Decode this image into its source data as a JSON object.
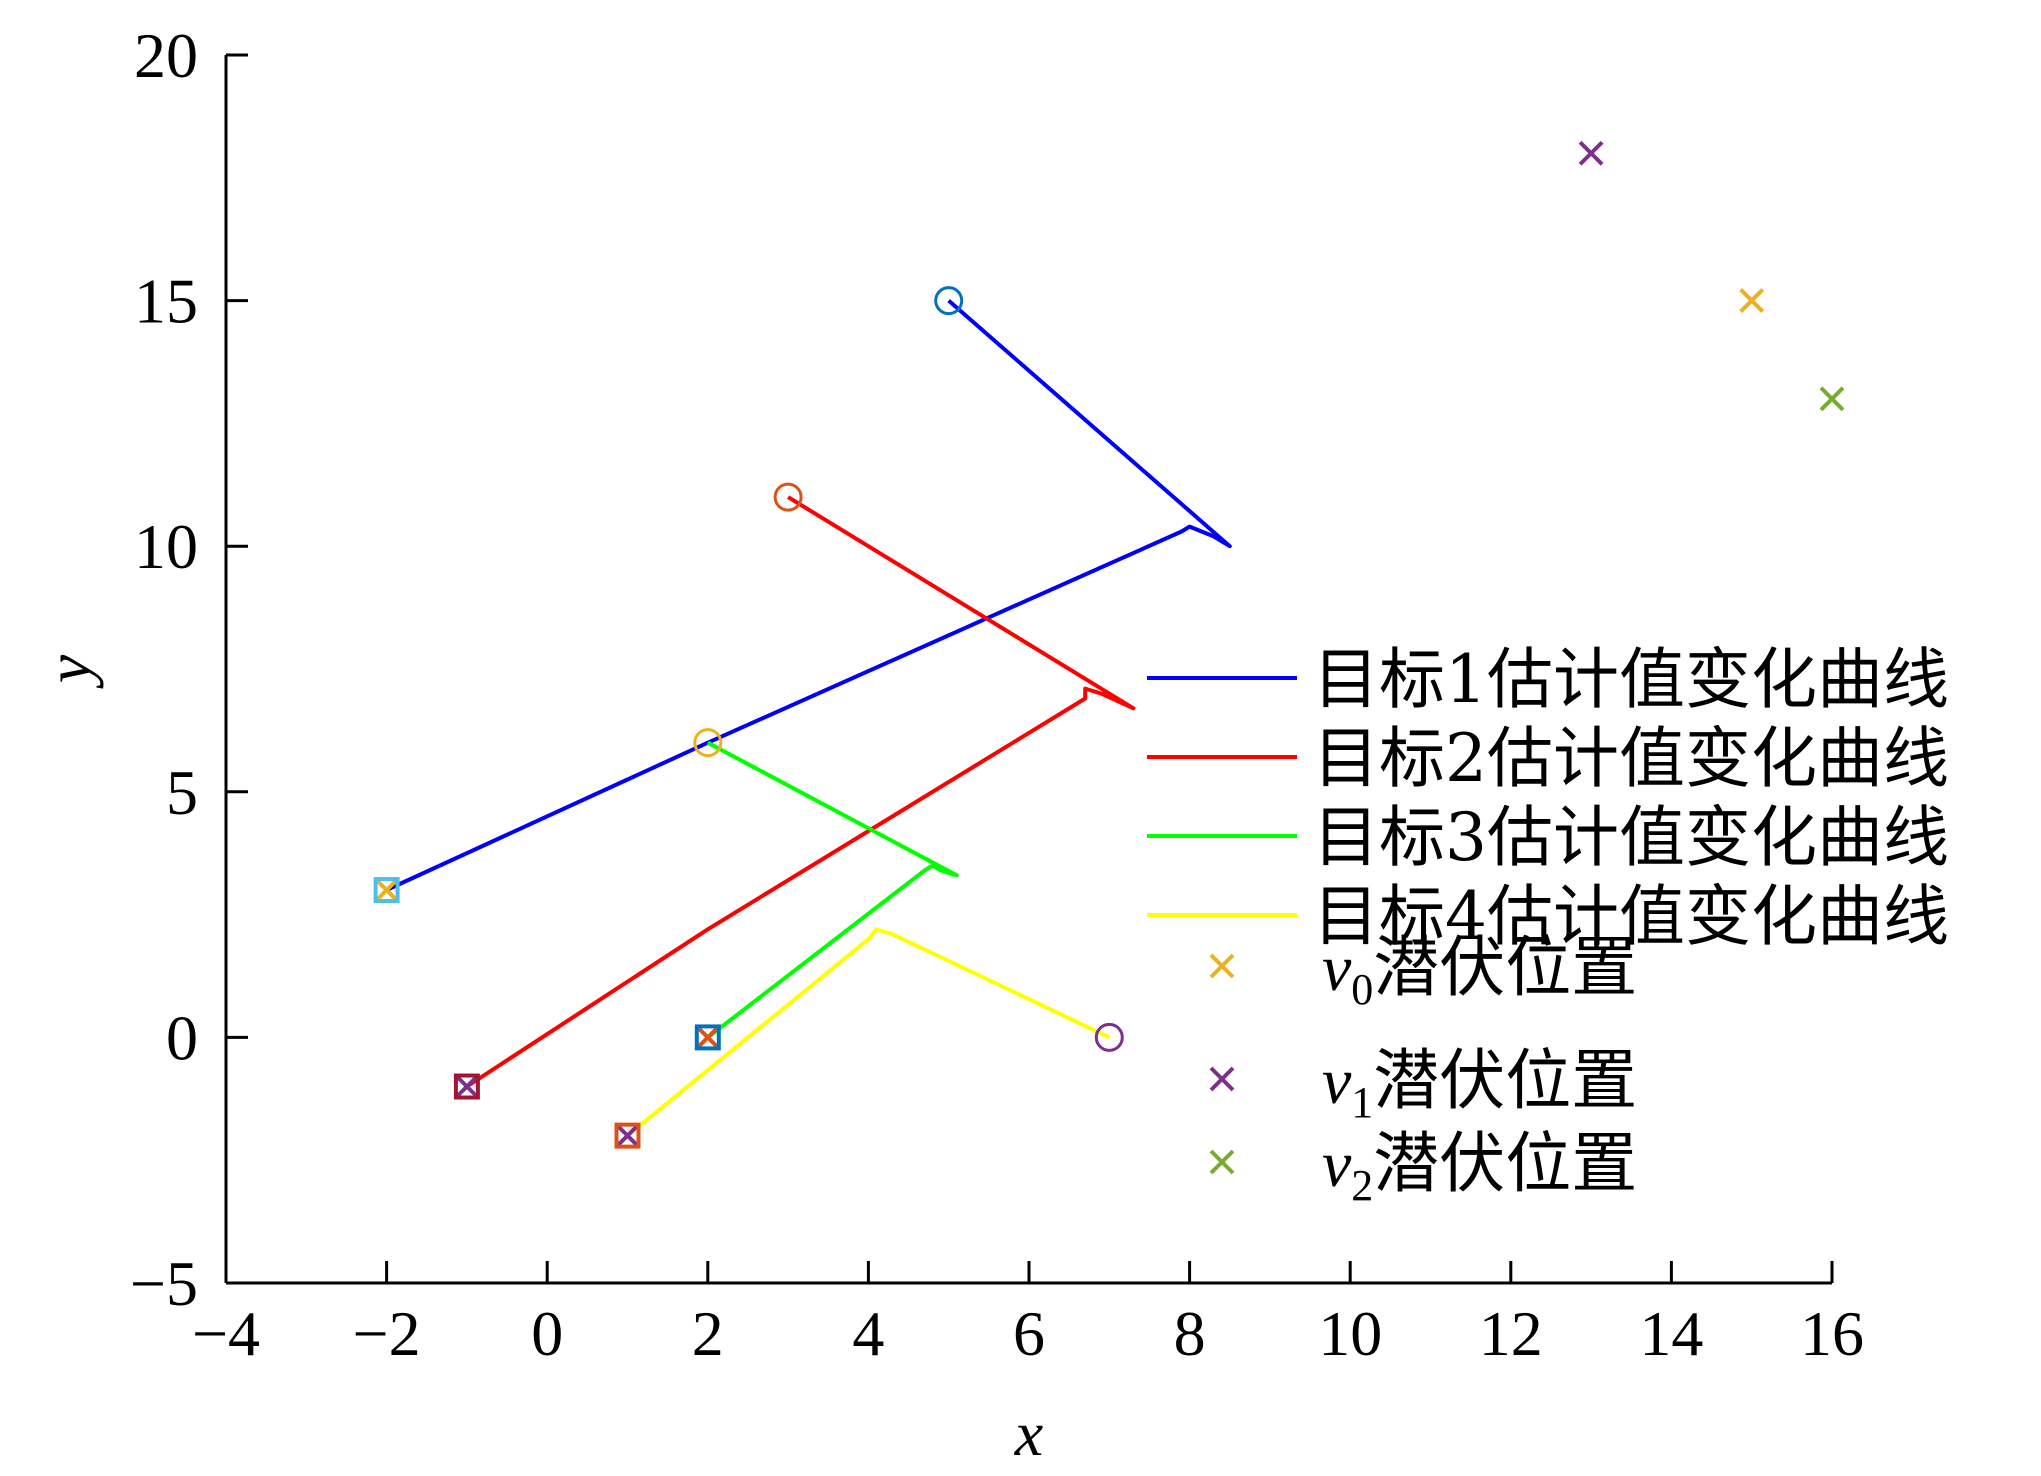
{
  "chart_data": {
    "type": "line",
    "xlabel": "x",
    "ylabel": "y",
    "xlim": [
      -4,
      16
    ],
    "ylim": [
      -5,
      20
    ],
    "xticks": [
      -4,
      -2,
      0,
      2,
      4,
      6,
      8,
      10,
      12,
      14,
      16
    ],
    "yticks": [
      -5,
      0,
      5,
      10,
      15,
      20
    ],
    "grid": false,
    "legend_position": "right",
    "series": [
      {
        "name": "目标1估计值变化曲线",
        "color": "#0000ff",
        "points": [
          [
            5,
            15
          ],
          [
            8.5,
            10
          ],
          [
            8.3,
            10.2
          ],
          [
            8,
            10.4
          ],
          [
            7.9,
            10.3
          ],
          [
            2,
            6
          ],
          [
            -2,
            3
          ]
        ],
        "start_marker": {
          "x": 5,
          "y": 15,
          "color": "#0072bd"
        },
        "end_marker": {
          "x": -2,
          "y": 3,
          "color": "#4dbeee"
        }
      },
      {
        "name": "目标2估计值变化曲线",
        "color": "#ff0000",
        "points": [
          [
            3,
            11
          ],
          [
            7.3,
            6.7
          ],
          [
            6.9,
            7
          ],
          [
            6.7,
            7.1
          ],
          [
            6.7,
            6.9
          ],
          [
            2,
            2.2
          ],
          [
            -1,
            -1
          ]
        ],
        "start_marker": {
          "x": 3,
          "y": 11,
          "color": "#d95319"
        },
        "end_marker": {
          "x": -1,
          "y": -1,
          "color": "#a2142f"
        }
      },
      {
        "name": "目标3估计值变化曲线",
        "color": "#00ff00",
        "points": [
          [
            2,
            6
          ],
          [
            5.1,
            3.3
          ],
          [
            4.9,
            3.4
          ],
          [
            4.8,
            3.5
          ],
          [
            4.7,
            3.4
          ],
          [
            2,
            0
          ]
        ],
        "start_marker": {
          "x": 2,
          "y": 6,
          "color": "#edb120"
        },
        "end_marker": {
          "x": 2,
          "y": 0,
          "color": "#0072bd"
        }
      },
      {
        "name": "目标4估计值变化曲线",
        "color": "#ffff00",
        "points": [
          [
            7,
            0
          ],
          [
            4.3,
            2.1
          ],
          [
            4.1,
            2.2
          ],
          [
            4,
            2
          ],
          [
            1,
            -2
          ]
        ],
        "start_marker": {
          "x": 7,
          "y": 0,
          "color": "#7e2f8e"
        },
        "end_marker": {
          "x": 1,
          "y": -2,
          "color": "#d95319"
        }
      }
    ],
    "lurk_positions": [
      {
        "label_var": "v",
        "label_sub": "0",
        "label_text": "潜伏位置",
        "color": "#edb120",
        "x": 15,
        "y": 15
      },
      {
        "label_var": "v",
        "label_sub": "1",
        "label_text": "潜伏位置",
        "color": "#7e2f8e",
        "x": 13,
        "y": 18
      },
      {
        "label_var": "v",
        "label_sub": "2",
        "label_text": "潜伏位置",
        "color": "#77ac30",
        "x": 16,
        "y": 13
      }
    ],
    "start_crosses": [
      {
        "x": -2,
        "y": 3,
        "color": "#edb120"
      },
      {
        "x": -1,
        "y": -1,
        "color": "#7e2f8e"
      },
      {
        "x": 2,
        "y": 0,
        "color": "#d95319"
      },
      {
        "x": 1,
        "y": -2,
        "color": "#7e2f8e"
      }
    ]
  }
}
